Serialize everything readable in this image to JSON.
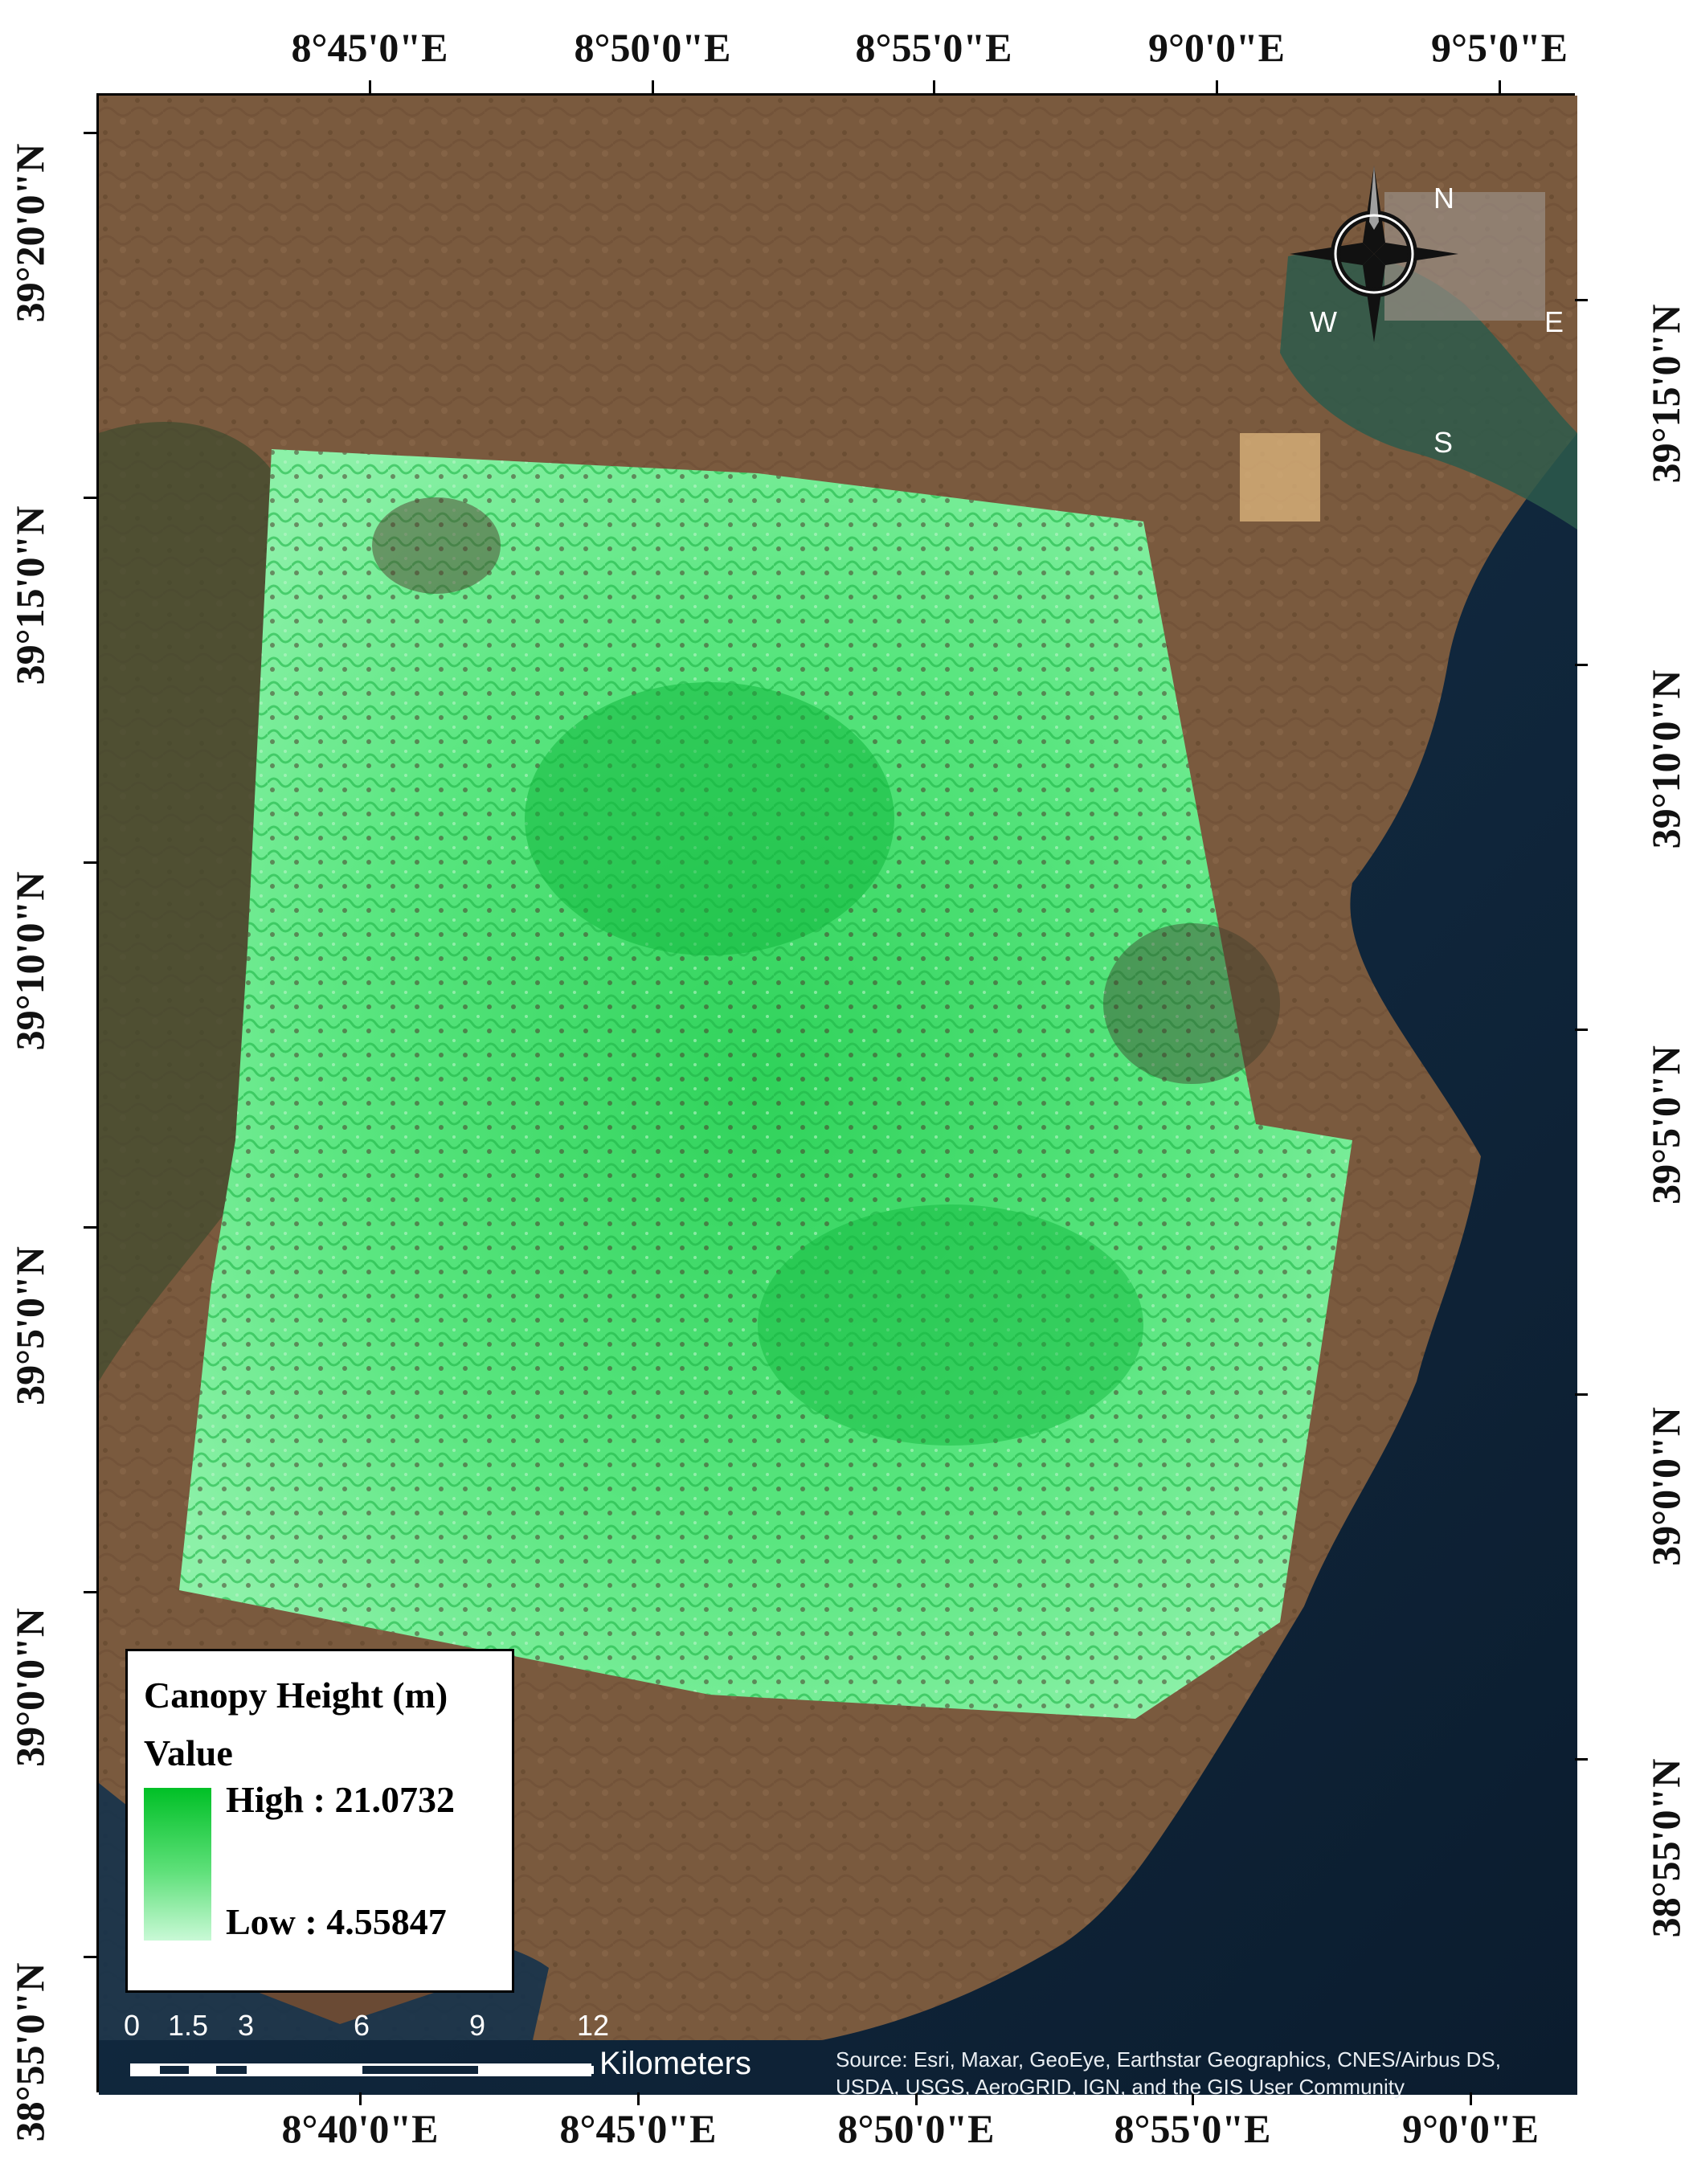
{
  "map": {
    "axes": {
      "top_longitudes": [
        "8°45'0\"E",
        "8°50'0\"E",
        "8°55'0\"E",
        "9°0'0\"E",
        "9°5'0\"E"
      ],
      "bottom_longitudes": [
        "8°40'0\"E",
        "8°45'0\"E",
        "8°50'0\"E",
        "8°55'0\"E",
        "9°0'0\"E"
      ],
      "left_latitudes": [
        "39°20'0\"N",
        "39°15'0\"N",
        "39°10'0\"N",
        "39°5'0\"N",
        "39°0'0\"N",
        "38°55'0\"N"
      ],
      "right_latitudes": [
        "39°15'0\"N",
        "39°10'0\"N",
        "39°5'0\"N",
        "39°0'0\"N",
        "38°55'0\"N"
      ]
    },
    "legend": {
      "title": "Canopy Height (m)",
      "subtitle": "Value",
      "high": "High : 21.0732",
      "low": "Low : 4.55847",
      "high_value": 21.0732,
      "low_value": 4.55847,
      "ramp_colors": [
        "#00c026",
        "#5fe07a",
        "#c9f9d6"
      ]
    },
    "scale_bar": {
      "ticks": [
        "0",
        "1.5",
        "3",
        "6",
        "9",
        "12"
      ],
      "unit": "Kilometers"
    },
    "compass": {
      "n": "N",
      "s": "S",
      "e": "E",
      "w": "W"
    },
    "credit": "Source: Esri, Maxar, GeoEye, Earthstar Geographics, CNES/Airbus DS, USDA, USGS, AeroGRID, IGN, and the GIS User Community",
    "colors": {
      "land": "#7a5a3e",
      "sea": "#0d2135",
      "canopy": "#49d870"
    }
  }
}
